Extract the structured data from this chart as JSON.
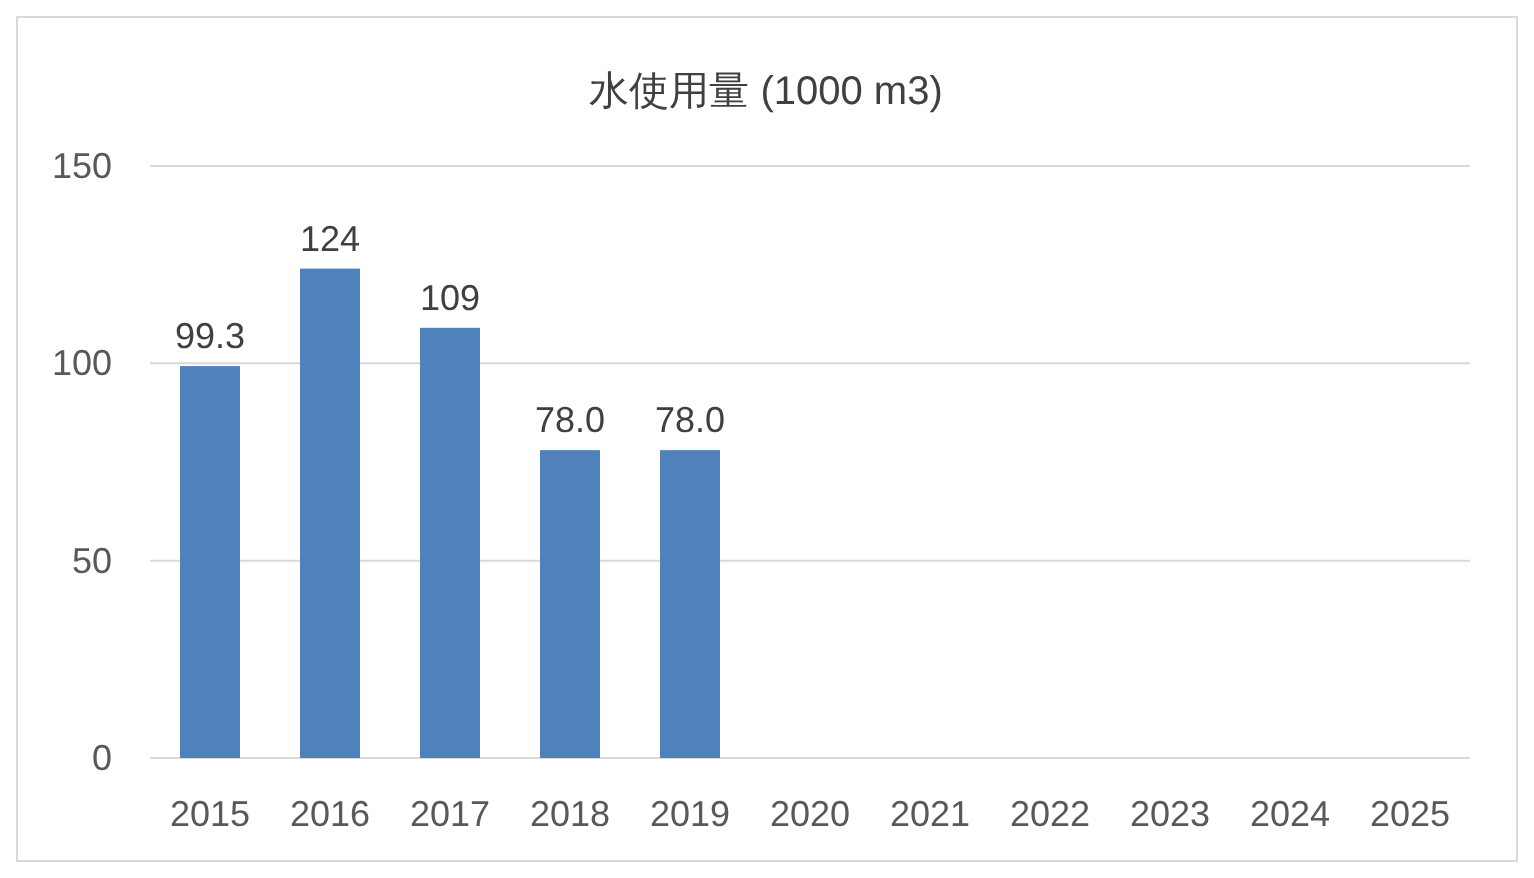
{
  "chart_data": {
    "type": "bar",
    "title": "水使用量 (1000 m3)",
    "categories": [
      "2015",
      "2016",
      "2017",
      "2018",
      "2019",
      "2020",
      "2021",
      "2022",
      "2023",
      "2024",
      "2025"
    ],
    "values": [
      99.3,
      124,
      109,
      78.0,
      78.0,
      null,
      null,
      null,
      null,
      null,
      null
    ],
    "value_labels": [
      "99.3",
      "124",
      "109",
      "78.0",
      "78.0",
      null,
      null,
      null,
      null,
      null,
      null
    ],
    "color": "#4f81bd",
    "ylim": [
      0,
      150
    ],
    "yticks": [
      0,
      50,
      100,
      150
    ],
    "grid": "y"
  }
}
